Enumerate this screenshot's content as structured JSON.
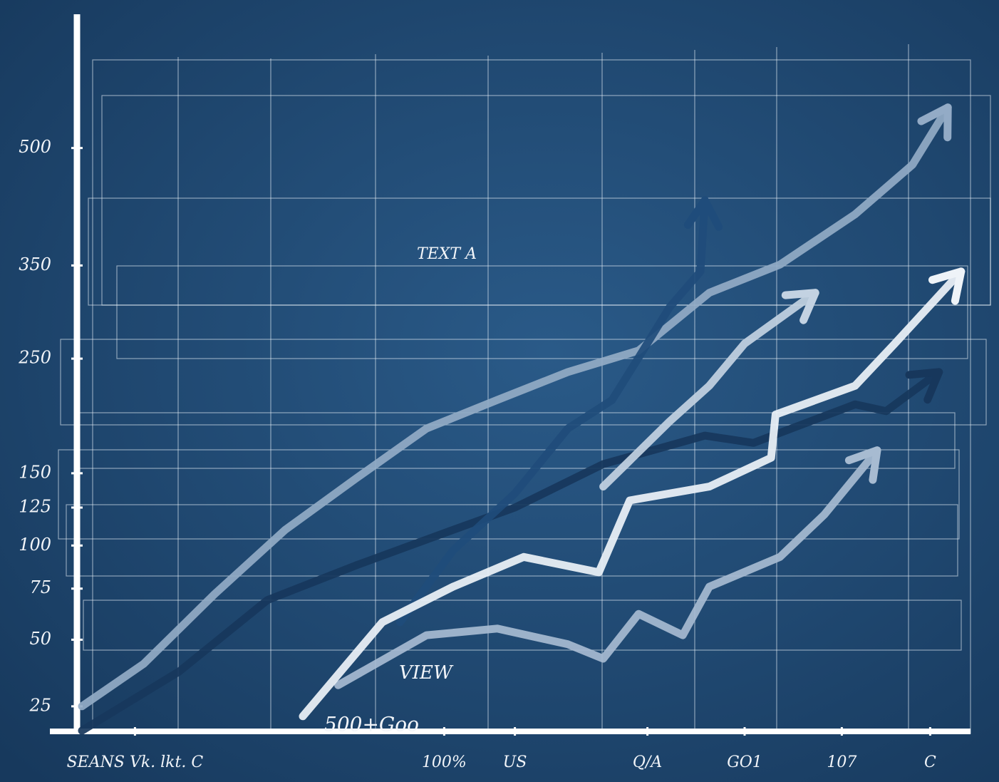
{
  "chart_data": {
    "type": "line",
    "xlim": [
      0,
      100
    ],
    "xticks": [
      {
        "value": 6,
        "label": "SEANS Vk. lkt. C"
      },
      {
        "value": 41,
        "label": "100%"
      },
      {
        "value": 49,
        "label": "US"
      },
      {
        "value": 64,
        "label": "Q/A"
      },
      {
        "value": 75,
        "label": "GO1"
      },
      {
        "value": 86,
        "label": "107"
      },
      {
        "value": 96,
        "label": "C"
      }
    ],
    "ylim": [
      18,
      680
    ],
    "yscale": "sqrt",
    "yticks": [
      25,
      50,
      75,
      100,
      125,
      150,
      250,
      350,
      500
    ],
    "annotations": [
      "TEXT A",
      "500+Goo",
      "VIEW"
    ],
    "series": [
      {
        "color": "#93abc6",
        "x": [
          0,
          7,
          15,
          23,
          31,
          39,
          47,
          55,
          63,
          71,
          79,
          87.5,
          94,
          98
        ],
        "values": [
          25,
          40,
          72,
          110,
          146,
          186,
          211,
          237,
          258,
          319,
          351,
          412,
          477,
          558
        ]
      },
      {
        "color": "#17375c",
        "x": [
          0,
          11,
          21,
          31,
          42,
          49,
          59,
          70.5,
          76,
          87.5,
          91,
          97
        ],
        "values": [
          18,
          37,
          69,
          88,
          110,
          125,
          157,
          180,
          174,
          207,
          201,
          237
        ]
      },
      {
        "color": "#1f4c7b",
        "x": [
          36,
          42,
          49,
          55,
          60,
          63,
          66.5,
          70,
          70.5
        ],
        "values": [
          58,
          97,
          135,
          186,
          211,
          251,
          303,
          343,
          430
        ]
      },
      {
        "color": "#a7bbd1",
        "x": [
          29,
          39,
          47,
          55,
          59,
          63,
          68,
          71,
          79,
          84,
          90
        ],
        "values": [
          32,
          52,
          55,
          48,
          42,
          62,
          52,
          76,
          93,
          120,
          168
        ]
      },
      {
        "color": "#c3d2e2",
        "x": [
          59,
          66.5,
          71,
          75,
          83
        ],
        "values": [
          140,
          192,
          224,
          265,
          319
        ]
      },
      {
        "color": "#eef3f8",
        "x": [
          25,
          34,
          42,
          50,
          58.5,
          62,
          71,
          78,
          78.5,
          87.5,
          92,
          99.5
        ],
        "values": [
          22,
          58,
          76,
          93,
          84,
          130,
          140,
          162,
          198,
          224,
          265,
          343
        ]
      }
    ]
  }
}
